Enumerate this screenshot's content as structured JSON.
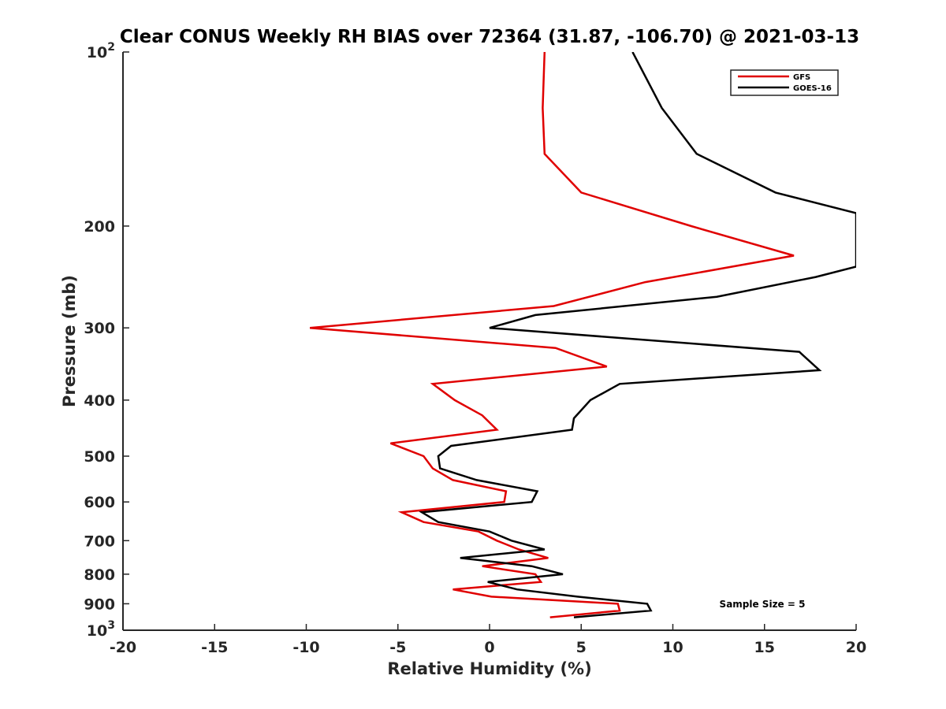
{
  "chart_data": {
    "type": "line",
    "title": "Clear CONUS Weekly RH BIAS over 72364 (31.87, -106.70) @ 2021-03-13",
    "xlabel": "Relative Humidity (%)",
    "ylabel": "Pressure (mb)",
    "xlim": [
      -20,
      20
    ],
    "ylim": [
      100,
      1000
    ],
    "y_scale": "log",
    "y_reversed": true,
    "grid": false,
    "legend_position": "top-right",
    "x_ticks": [
      "-20",
      "-15",
      "-10",
      "-5",
      "0",
      "5",
      "10",
      "15",
      "20"
    ],
    "y_ticks": [
      {
        "value": 100,
        "base": "10",
        "exp": "2"
      },
      {
        "value": 200,
        "label": "200"
      },
      {
        "value": 300,
        "label": "300"
      },
      {
        "value": 400,
        "label": "400"
      },
      {
        "value": 500,
        "label": "500"
      },
      {
        "value": 600,
        "label": "600"
      },
      {
        "value": 700,
        "label": "700"
      },
      {
        "value": 800,
        "label": "800"
      },
      {
        "value": 900,
        "label": "900"
      },
      {
        "value": 1000,
        "base": "10",
        "exp": "3"
      }
    ],
    "series": [
      {
        "name": "GFS",
        "color": "#e00000",
        "points": [
          [
            3.0,
            100
          ],
          [
            2.9,
            125
          ],
          [
            3.0,
            150
          ],
          [
            5.0,
            175
          ],
          [
            11.0,
            200
          ],
          [
            16.6,
            225
          ],
          [
            8.5,
            250
          ],
          [
            3.5,
            275
          ],
          [
            -9.8,
            300
          ],
          [
            3.6,
            325
          ],
          [
            6.4,
            350
          ],
          [
            -3.1,
            375
          ],
          [
            -1.9,
            400
          ],
          [
            -0.4,
            425
          ],
          [
            0.4,
            450
          ],
          [
            -5.4,
            475
          ],
          [
            -3.6,
            500
          ],
          [
            -3.1,
            525
          ],
          [
            -2.0,
            550
          ],
          [
            0.9,
            575
          ],
          [
            0.8,
            600
          ],
          [
            -4.8,
            625
          ],
          [
            -3.6,
            650
          ],
          [
            -0.6,
            675
          ],
          [
            0.4,
            700
          ],
          [
            1.6,
            725
          ],
          [
            3.2,
            750
          ],
          [
            -0.4,
            775
          ],
          [
            2.5,
            800
          ],
          [
            2.8,
            825
          ],
          [
            -2.0,
            850
          ],
          [
            0.1,
            875
          ],
          [
            7.0,
            900
          ],
          [
            7.1,
            925
          ],
          [
            3.3,
            950
          ]
        ]
      },
      {
        "name": "GOES-16",
        "color": "#000000",
        "points": [
          [
            7.8,
            100
          ],
          [
            9.4,
            125
          ],
          [
            11.3,
            150
          ],
          [
            15.6,
            175
          ],
          [
            20.0,
            190
          ],
          [
            20.0,
            235
          ],
          [
            17.8,
            245
          ],
          [
            12.4,
            265
          ],
          [
            2.5,
            285
          ],
          [
            0.0,
            300
          ],
          [
            16.9,
            330
          ],
          [
            18.0,
            355
          ],
          [
            7.1,
            375
          ],
          [
            5.5,
            400
          ],
          [
            4.6,
            430
          ],
          [
            4.5,
            450
          ],
          [
            -2.1,
            480
          ],
          [
            -2.8,
            500
          ],
          [
            -2.7,
            525
          ],
          [
            -0.7,
            550
          ],
          [
            2.6,
            575
          ],
          [
            2.3,
            600
          ],
          [
            -3.7,
            625
          ],
          [
            -2.8,
            650
          ],
          [
            0.0,
            675
          ],
          [
            1.2,
            700
          ],
          [
            3.0,
            725
          ],
          [
            -1.6,
            750
          ],
          [
            2.3,
            775
          ],
          [
            4.0,
            800
          ],
          [
            -0.1,
            825
          ],
          [
            1.5,
            850
          ],
          [
            4.8,
            875
          ],
          [
            8.6,
            900
          ],
          [
            8.8,
            925
          ],
          [
            4.6,
            950
          ]
        ]
      }
    ],
    "annotations": [
      {
        "text": "Sample Size = 5",
        "position": "bottom-right"
      }
    ]
  }
}
